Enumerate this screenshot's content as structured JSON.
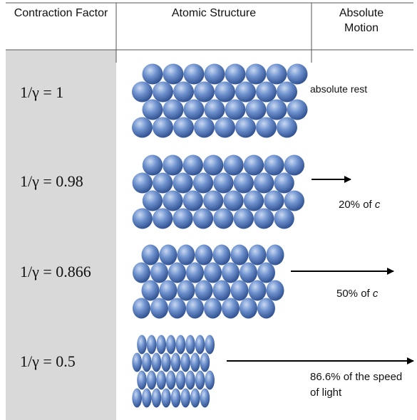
{
  "header": [
    "Contraction Factor",
    "Atomic Structure",
    "Absolute Motion"
  ],
  "rows": [
    {
      "factor": "1/γ = 1",
      "motion": "absolute rest"
    },
    {
      "factor": "1/γ = 0.98",
      "motion": "20% of",
      "motion_symbol": "c"
    },
    {
      "factor": "1/γ = 0.866",
      "motion": "50% of",
      "motion_symbol": "c"
    },
    {
      "factor": "1/γ = 0.5",
      "motion": "86.6% of the speed of light"
    }
  ]
}
